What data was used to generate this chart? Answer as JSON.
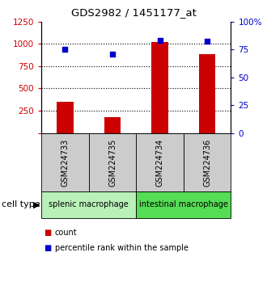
{
  "title": "GDS2982 / 1451177_at",
  "samples": [
    "GSM224733",
    "GSM224735",
    "GSM224734",
    "GSM224736"
  ],
  "counts": [
    350,
    175,
    1020,
    880
  ],
  "percentiles": [
    75,
    71,
    83,
    82
  ],
  "bar_color": "#cc0000",
  "dot_color": "#0000cc",
  "ylim_left": [
    0,
    1250
  ],
  "ylim_right": [
    0,
    100
  ],
  "yticks_left": [
    0,
    250,
    500,
    750,
    1000,
    1250
  ],
  "ytick_labels_left": [
    "",
    "250",
    "500",
    "750",
    "1000",
    "1250"
  ],
  "yticks_right": [
    0,
    25,
    50,
    75,
    100
  ],
  "ytick_labels_right": [
    "0",
    "25",
    "50",
    "75",
    "100%"
  ],
  "group0_label": "splenic macrophage",
  "group0_color": "#b8f0b8",
  "group1_label": "intestinal macrophage",
  "group1_color": "#55dd55",
  "sample_box_color": "#cccccc",
  "cell_type_label": "cell type",
  "legend_count_label": "count",
  "legend_pct_label": "percentile rank within the sample",
  "bar_width": 0.35,
  "figsize": [
    3.3,
    3.54
  ],
  "dpi": 100
}
